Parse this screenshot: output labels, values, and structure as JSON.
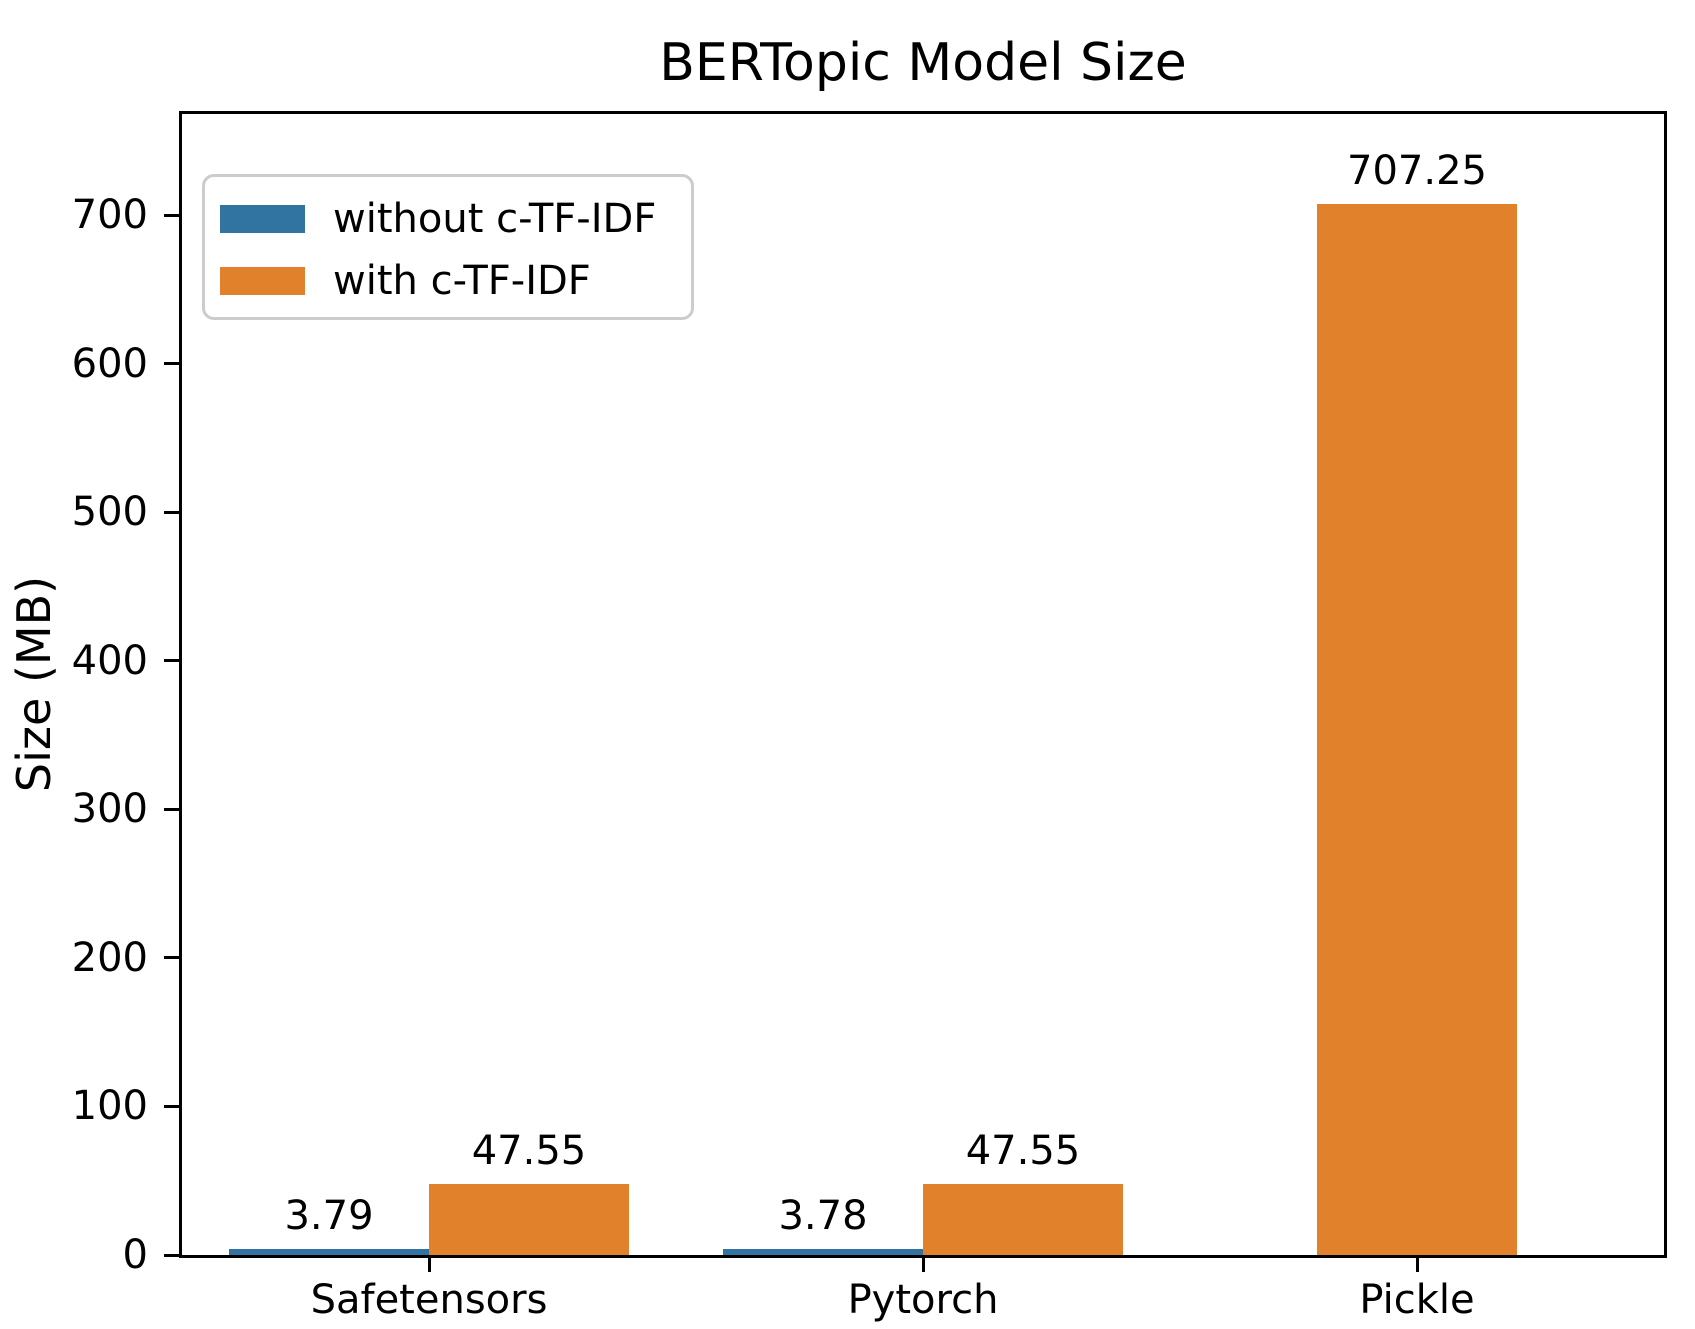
{
  "title": "BERTopic Model Size",
  "chart_data": {
    "type": "bar",
    "title": "BERTopic Model Size",
    "xlabel": "",
    "ylabel": "Size (MB)",
    "categories": [
      "Safetensors",
      "Pytorch",
      "Pickle"
    ],
    "series": [
      {
        "name": "without c-TF-IDF",
        "color": "#3274A1",
        "values": [
          3.79,
          3.78,
          null
        ]
      },
      {
        "name": "with c-TF-IDF",
        "color": "#E1812C",
        "values": [
          47.55,
          47.55,
          707.25
        ]
      }
    ],
    "bar_value_labels": [
      "3.79",
      "47.55",
      "3.78",
      "47.55",
      "707.25"
    ],
    "ylim": [
      0,
      768
    ],
    "yticks": [
      0,
      100,
      200,
      300,
      400,
      500,
      600,
      700
    ],
    "grid": false,
    "legend": {
      "position": "upper left",
      "entries": [
        "without c-TF-IDF",
        "with c-TF-IDF"
      ]
    },
    "colors": {
      "background": "#FFFFFF",
      "axis": "#000000",
      "text": "#000000",
      "legend_border": "#CCCCCC"
    }
  }
}
